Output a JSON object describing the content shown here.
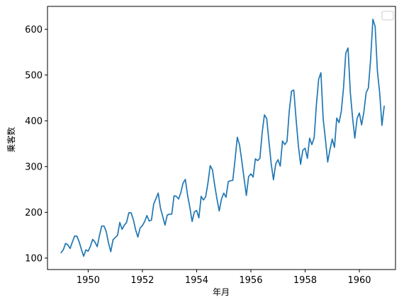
{
  "chart_data": {
    "type": "line",
    "title": "",
    "xlabel": "年月",
    "ylabel": "乗客数",
    "x_axis_type": "date-monthly",
    "xlim": [
      "1948-07",
      "1961-05"
    ],
    "ylim": [
      75,
      650
    ],
    "xticks": [
      "1950",
      "1952",
      "1954",
      "1956",
      "1958",
      "1960"
    ],
    "yticks": [
      "100",
      "200",
      "300",
      "400",
      "500",
      "600"
    ],
    "grid": false,
    "legend": {
      "placement": "top-right",
      "entries": []
    },
    "colors": {
      "line": "#1f77b4"
    },
    "series": [
      {
        "x": [
          "1949-01",
          "1949-02",
          "1949-03",
          "1949-04",
          "1949-05",
          "1949-06",
          "1949-07",
          "1949-08",
          "1949-09",
          "1949-10",
          "1949-11",
          "1949-12",
          "1950-01",
          "1950-02",
          "1950-03",
          "1950-04",
          "1950-05",
          "1950-06",
          "1950-07",
          "1950-08",
          "1950-09",
          "1950-10",
          "1950-11",
          "1950-12",
          "1951-01",
          "1951-02",
          "1951-03",
          "1951-04",
          "1951-05",
          "1951-06",
          "1951-07",
          "1951-08",
          "1951-09",
          "1951-10",
          "1951-11",
          "1951-12",
          "1952-01",
          "1952-02",
          "1952-03",
          "1952-04",
          "1952-05",
          "1952-06",
          "1952-07",
          "1952-08",
          "1952-09",
          "1952-10",
          "1952-11",
          "1952-12",
          "1953-01",
          "1953-02",
          "1953-03",
          "1953-04",
          "1953-05",
          "1953-06",
          "1953-07",
          "1953-08",
          "1953-09",
          "1953-10",
          "1953-11",
          "1953-12",
          "1954-01",
          "1954-02",
          "1954-03",
          "1954-04",
          "1954-05",
          "1954-06",
          "1954-07",
          "1954-08",
          "1954-09",
          "1954-10",
          "1954-11",
          "1954-12",
          "1955-01",
          "1955-02",
          "1955-03",
          "1955-04",
          "1955-05",
          "1955-06",
          "1955-07",
          "1955-08",
          "1955-09",
          "1955-10",
          "1955-11",
          "1955-12",
          "1956-01",
          "1956-02",
          "1956-03",
          "1956-04",
          "1956-05",
          "1956-06",
          "1956-07",
          "1956-08",
          "1956-09",
          "1956-10",
          "1956-11",
          "1956-12",
          "1957-01",
          "1957-02",
          "1957-03",
          "1957-04",
          "1957-05",
          "1957-06",
          "1957-07",
          "1957-08",
          "1957-09",
          "1957-10",
          "1957-11",
          "1957-12",
          "1958-01",
          "1958-02",
          "1958-03",
          "1958-04",
          "1958-05",
          "1958-06",
          "1958-07",
          "1958-08",
          "1958-09",
          "1958-10",
          "1958-11",
          "1958-12",
          "1959-01",
          "1959-02",
          "1959-03",
          "1959-04",
          "1959-05",
          "1959-06",
          "1959-07",
          "1959-08",
          "1959-09",
          "1959-10",
          "1959-11",
          "1959-12",
          "1960-01",
          "1960-02",
          "1960-03",
          "1960-04",
          "1960-05",
          "1960-06",
          "1960-07",
          "1960-08",
          "1960-09",
          "1960-10",
          "1960-11",
          "1960-12"
        ],
        "values": [
          112,
          118,
          132,
          129,
          121,
          135,
          148,
          148,
          136,
          119,
          104,
          118,
          115,
          126,
          141,
          135,
          125,
          149,
          170,
          170,
          158,
          133,
          114,
          140,
          145,
          150,
          178,
          163,
          172,
          178,
          199,
          199,
          184,
          162,
          146,
          166,
          171,
          180,
          193,
          181,
          183,
          218,
          230,
          242,
          209,
          191,
          172,
          194,
          196,
          196,
          236,
          235,
          229,
          243,
          264,
          272,
          237,
          211,
          180,
          201,
          204,
          188,
          235,
          227,
          234,
          264,
          302,
          293,
          259,
          229,
          203,
          229,
          242,
          233,
          267,
          269,
          270,
          315,
          364,
          347,
          312,
          274,
          237,
          278,
          284,
          277,
          317,
          313,
          318,
          374,
          413,
          405,
          355,
          306,
          271,
          306,
          315,
          301,
          356,
          348,
          355,
          422,
          465,
          467,
          404,
          347,
          305,
          336,
          340,
          318,
          362,
          348,
          363,
          435,
          491,
          505,
          404,
          359,
          310,
          337,
          360,
          342,
          406,
          396,
          420,
          472,
          548,
          559,
          463,
          407,
          362,
          405,
          417,
          391,
          419,
          461,
          472,
          535,
          622,
          606,
          508,
          461,
          390,
          432
        ]
      }
    ]
  }
}
